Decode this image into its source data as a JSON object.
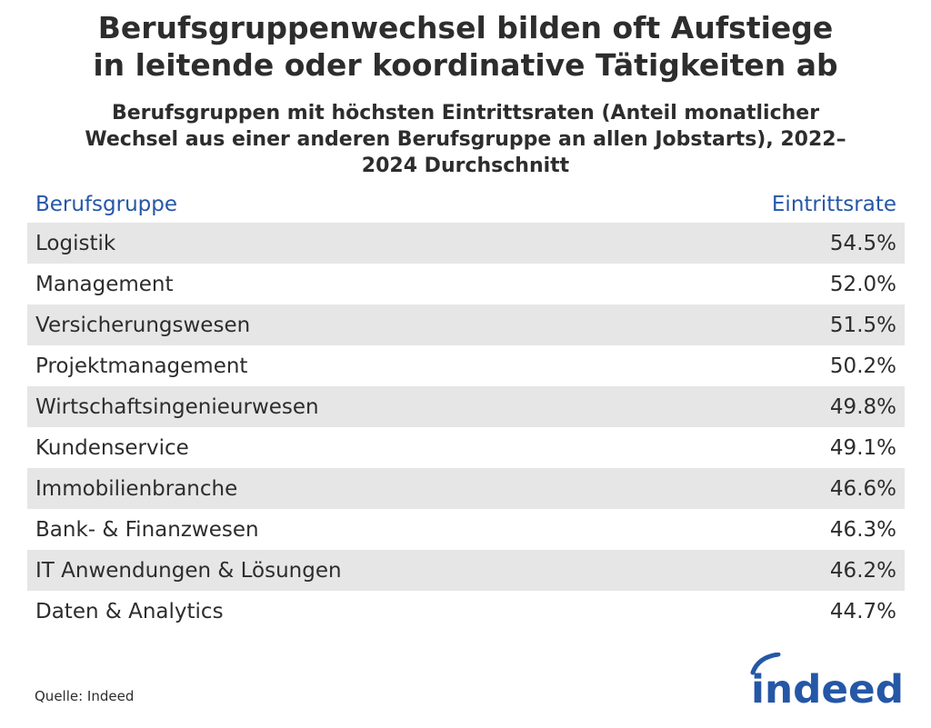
{
  "header": {
    "title_line1": "Berufsgruppenwechsel bilden oft Aufstiege",
    "title_line2": "in leitende oder koordinative Tätigkeiten ab",
    "subtitle_line1": "Berufsgruppen mit höchsten Eintrittsraten (Anteil monatlicher",
    "subtitle_line2": "Wechsel aus einer anderen Berufsgruppe an allen Jobstarts), 2022–",
    "subtitle_line3": "2024 Durchschnitt"
  },
  "chart_data": {
    "type": "table",
    "columns": [
      "Berufsgruppe",
      "Eintrittsrate"
    ],
    "rows": [
      {
        "label": "Logistik",
        "value": "54.5%"
      },
      {
        "label": "Management",
        "value": "52.0%"
      },
      {
        "label": "Versicherungswesen",
        "value": "51.5%"
      },
      {
        "label": "Projektmanagement",
        "value": "50.2%"
      },
      {
        "label": "Wirtschaftsingenieurwesen",
        "value": "49.8%"
      },
      {
        "label": "Kundenservice",
        "value": "49.1%"
      },
      {
        "label": "Immobilienbranche",
        "value": "46.6%"
      },
      {
        "label": "Bank- & Finanzwesen",
        "value": "46.3%"
      },
      {
        "label": "IT Anwendungen & Lösungen",
        "value": "46.2%"
      },
      {
        "label": "Daten & Analytics",
        "value": "44.7%"
      }
    ],
    "header_color": "#2557a7",
    "stripe_color": "#e6e6e6"
  },
  "footer": {
    "source": "Quelle: Indeed",
    "logo_text": "indeed",
    "logo_icon": "indeed-logo-icon",
    "logo_color": "#2557a7"
  }
}
